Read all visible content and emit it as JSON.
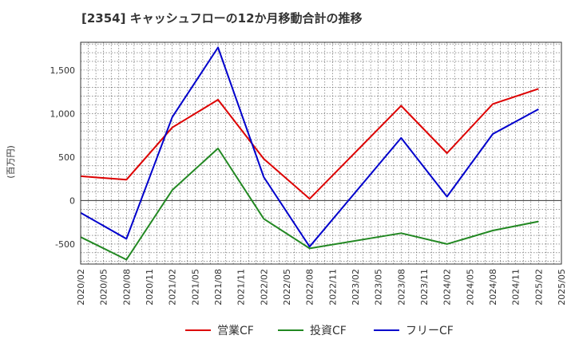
{
  "chart_data": {
    "type": "line",
    "title": "[2354]  キャッシュフローの12か月移動合計の推移",
    "ylabel": "(百万円)",
    "xlabel": "",
    "ylim": [
      -730,
      1820
    ],
    "yticks": [
      -500,
      0,
      500,
      1000,
      1500
    ],
    "ytick_labels": [
      "-500",
      "0",
      "500",
      "1,000",
      "1,500"
    ],
    "xticks": [
      "2020/02",
      "2020/05",
      "2020/08",
      "2020/11",
      "2021/02",
      "2021/05",
      "2021/08",
      "2021/11",
      "2022/02",
      "2022/05",
      "2022/08",
      "2022/11",
      "2023/02",
      "2023/05",
      "2023/08",
      "2023/11",
      "2024/02",
      "2024/05",
      "2024/08",
      "2024/11",
      "2025/02",
      "2025/05"
    ],
    "x": [
      "2020/02",
      "2020/08",
      "2021/02",
      "2021/08",
      "2022/02",
      "2022/08",
      "2023/08",
      "2024/02",
      "2024/08",
      "2025/02"
    ],
    "grid": true,
    "legend_position": "bottom",
    "series": [
      {
        "name": "営業CF",
        "color": "#dd0000",
        "values": [
          280,
          240,
          840,
          1160,
          480,
          20,
          1090,
          545,
          1110,
          1285
        ]
      },
      {
        "name": "投資CF",
        "color": "#228822",
        "values": [
          -420,
          -680,
          120,
          600,
          -210,
          -550,
          -375,
          -500,
          -345,
          -240
        ]
      },
      {
        "name": "フリーCF",
        "color": "#0000cc",
        "values": [
          -140,
          -440,
          960,
          1760,
          270,
          -530,
          720,
          45,
          765,
          1050
        ]
      }
    ]
  }
}
